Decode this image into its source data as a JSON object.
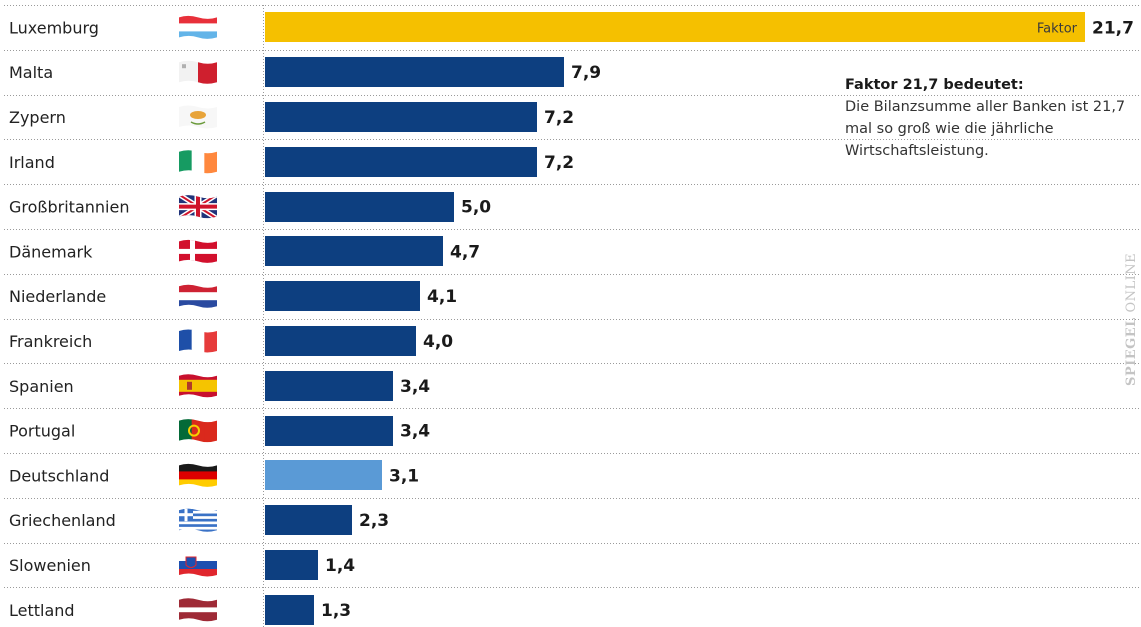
{
  "chart_data": {
    "type": "bar",
    "orientation": "horizontal",
    "categories": [
      "Luxemburg",
      "Malta",
      "Zypern",
      "Irland",
      "Großbritannien",
      "Dänemark",
      "Niederlande",
      "Frankreich",
      "Spanien",
      "Portugal",
      "Deutschland",
      "Griechenland",
      "Slowenien",
      "Lettland"
    ],
    "values": [
      21.7,
      7.9,
      7.2,
      7.2,
      5.0,
      4.7,
      4.1,
      4.0,
      3.4,
      3.4,
      3.1,
      2.3,
      1.4,
      1.3
    ],
    "value_labels": [
      "21,7",
      "7,9",
      "7,2",
      "7,2",
      "5,0",
      "4,7",
      "4,1",
      "4,0",
      "3,4",
      "3,4",
      "3,1",
      "2,3",
      "1,4",
      "1,3"
    ],
    "highlight": {
      "Luxemburg": "#f5c000",
      "Deutschland": "#5a9ad6"
    },
    "default_color": "#0d3f80",
    "inbar_label": "Faktor",
    "xlim": [
      0,
      21.7
    ],
    "grid": false
  },
  "flags": [
    "flag-luxembourg-icon",
    "flag-malta-icon",
    "flag-cyprus-icon",
    "flag-ireland-icon",
    "flag-uk-icon",
    "flag-denmark-icon",
    "flag-netherlands-icon",
    "flag-france-icon",
    "flag-spain-icon",
    "flag-portugal-icon",
    "flag-germany-icon",
    "flag-greece-icon",
    "flag-slovenia-icon",
    "flag-latvia-icon"
  ],
  "annotation": {
    "title": "Faktor 21,7 bedeutet:",
    "body": "Die Bilanzsumme aller Banken ist 21,7 mal so groß wie die jährliche Wirtschaftsleistung."
  },
  "watermark": {
    "brand": "SPIEGEL",
    "suffix": "ONLINE"
  }
}
